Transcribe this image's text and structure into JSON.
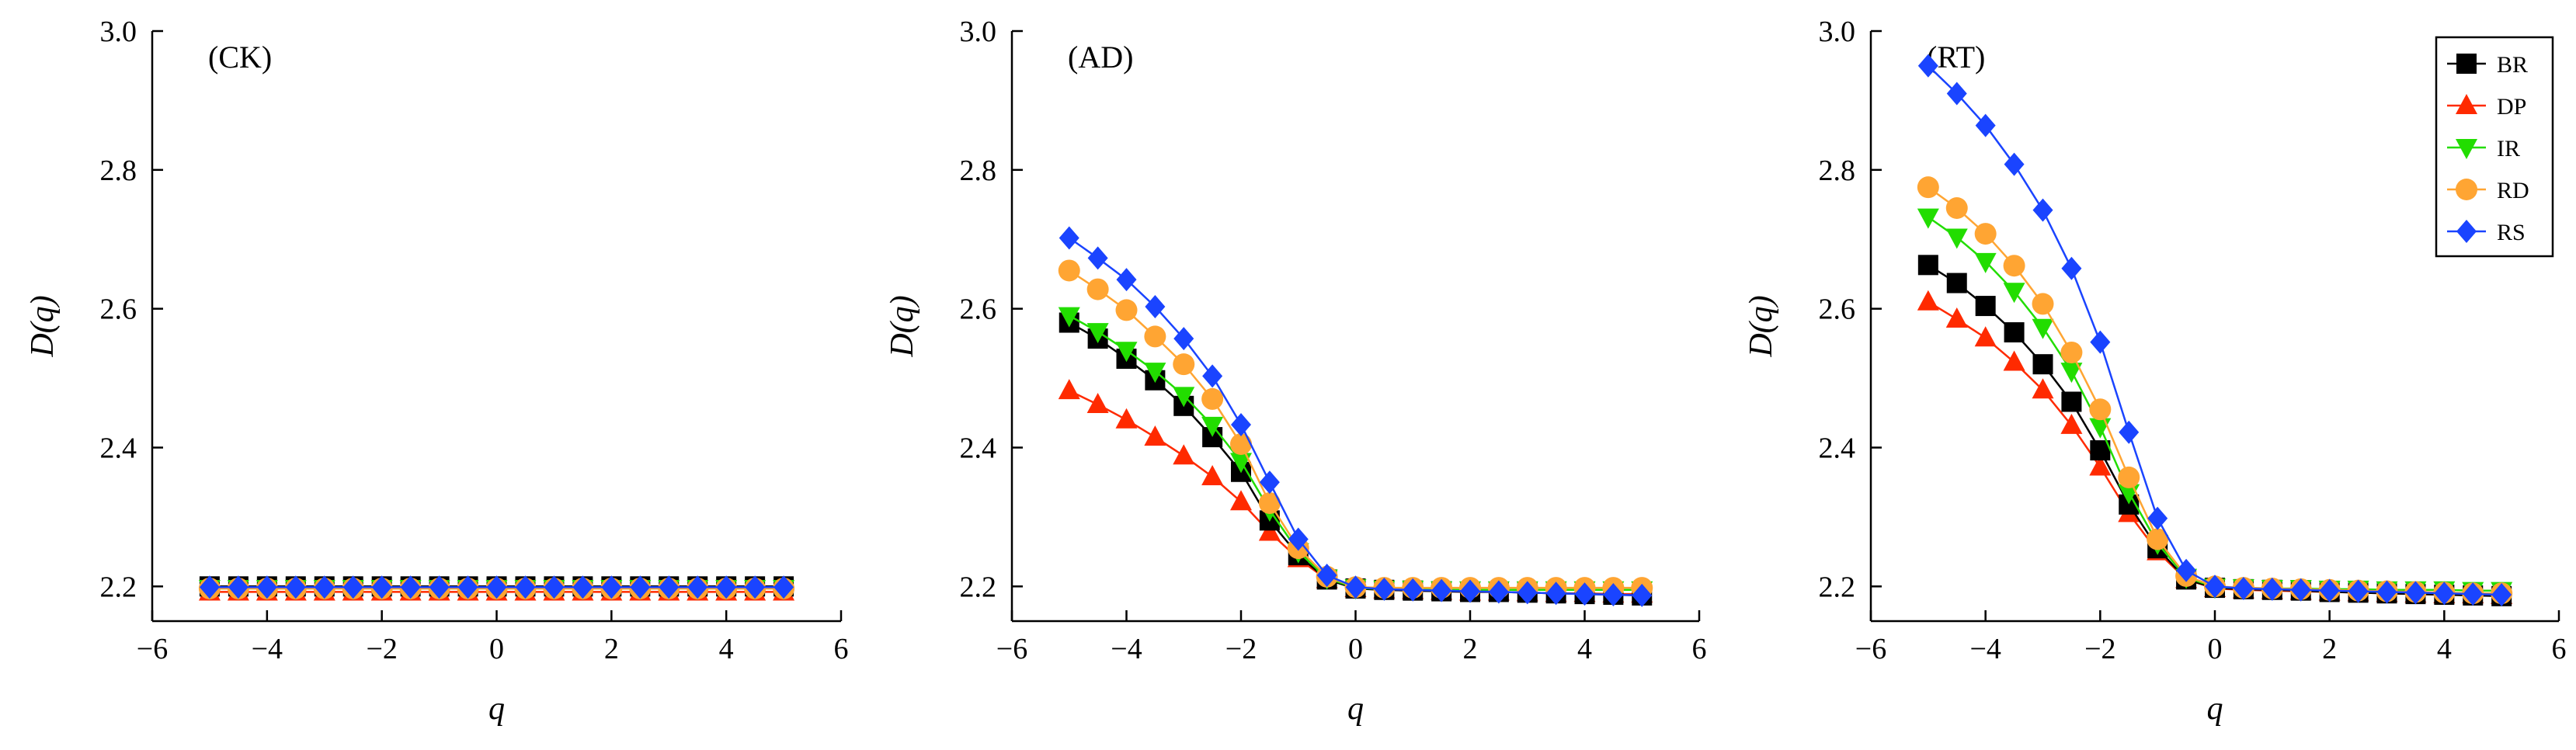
{
  "chart_data": [
    {
      "type": "line",
      "panel_label": "(CK)",
      "xlabel": "q",
      "ylabel": "D(q)",
      "xlim": [
        -6,
        6
      ],
      "ylim": [
        2.15,
        3.0
      ],
      "xticks": [
        -6,
        -4,
        -2,
        0,
        2,
        4,
        6
      ],
      "xtick_labels": [
        "−6",
        "−4",
        "−2",
        "0",
        "2",
        "4",
        "6"
      ],
      "yticks": [
        2.2,
        2.4,
        2.6,
        2.8,
        3.0
      ],
      "ytick_labels": [
        "2.2",
        "2.4",
        "2.6",
        "2.8",
        "3.0"
      ],
      "grid": false,
      "x": [
        -5,
        -4.5,
        -4,
        -3.5,
        -3,
        -2.5,
        -2,
        -1.5,
        -1,
        -0.5,
        0,
        0.5,
        1,
        1.5,
        2,
        2.5,
        3,
        3.5,
        4,
        4.5,
        5
      ],
      "series": [
        {
          "name": "BR",
          "values": [
            2.2,
            2.2,
            2.2,
            2.2,
            2.2,
            2.2,
            2.2,
            2.2,
            2.2,
            2.2,
            2.2,
            2.2,
            2.2,
            2.2,
            2.2,
            2.2,
            2.2,
            2.2,
            2.2,
            2.2,
            2.2
          ]
        },
        {
          "name": "DP",
          "values": [
            2.192,
            2.192,
            2.192,
            2.192,
            2.192,
            2.192,
            2.192,
            2.192,
            2.192,
            2.192,
            2.192,
            2.192,
            2.192,
            2.192,
            2.192,
            2.192,
            2.192,
            2.192,
            2.192,
            2.192,
            2.192
          ]
        },
        {
          "name": "IR",
          "values": [
            2.197,
            2.197,
            2.197,
            2.197,
            2.197,
            2.197,
            2.197,
            2.197,
            2.197,
            2.197,
            2.197,
            2.197,
            2.197,
            2.197,
            2.197,
            2.197,
            2.197,
            2.197,
            2.197,
            2.197,
            2.197
          ]
        },
        {
          "name": "RD",
          "values": [
            2.197,
            2.197,
            2.197,
            2.197,
            2.197,
            2.197,
            2.197,
            2.197,
            2.197,
            2.197,
            2.197,
            2.197,
            2.197,
            2.197,
            2.197,
            2.197,
            2.197,
            2.197,
            2.197,
            2.197,
            2.197
          ]
        },
        {
          "name": "RS",
          "values": [
            2.199,
            2.199,
            2.199,
            2.199,
            2.199,
            2.199,
            2.199,
            2.199,
            2.199,
            2.199,
            2.199,
            2.199,
            2.199,
            2.199,
            2.199,
            2.199,
            2.199,
            2.199,
            2.199,
            2.199,
            2.199
          ]
        }
      ]
    },
    {
      "type": "line",
      "panel_label": "(AD)",
      "xlabel": "q",
      "ylabel": "D(q)",
      "xlim": [
        -6,
        6
      ],
      "ylim": [
        2.15,
        3.0
      ],
      "xticks": [
        -6,
        -4,
        -2,
        0,
        2,
        4,
        6
      ],
      "xtick_labels": [
        "−6",
        "−4",
        "−2",
        "0",
        "2",
        "4",
        "6"
      ],
      "yticks": [
        2.2,
        2.4,
        2.6,
        2.8,
        3.0
      ],
      "ytick_labels": [
        "2.2",
        "2.4",
        "2.6",
        "2.8",
        "3.0"
      ],
      "grid": false,
      "x": [
        -5,
        -4.5,
        -4,
        -3.5,
        -3,
        -2.5,
        -2,
        -1.5,
        -1,
        -0.5,
        0,
        0.5,
        1,
        1.5,
        2,
        2.5,
        3,
        3.5,
        4,
        4.5,
        5
      ],
      "series": [
        {
          "name": "BR",
          "values": [
            2.58,
            2.557,
            2.528,
            2.497,
            2.46,
            2.415,
            2.365,
            2.295,
            2.245,
            2.21,
            2.197,
            2.195,
            2.194,
            2.193,
            2.192,
            2.192,
            2.191,
            2.19,
            2.189,
            2.188,
            2.187
          ]
        },
        {
          "name": "DP",
          "values": [
            2.482,
            2.462,
            2.44,
            2.415,
            2.388,
            2.358,
            2.322,
            2.278,
            2.24,
            2.21,
            2.197,
            2.195,
            2.194,
            2.193,
            2.192,
            2.192,
            2.191,
            2.19,
            2.19,
            2.189,
            2.189
          ]
        },
        {
          "name": "IR",
          "values": [
            2.59,
            2.567,
            2.54,
            2.51,
            2.475,
            2.432,
            2.38,
            2.31,
            2.25,
            2.212,
            2.198,
            2.196,
            2.196,
            2.195,
            2.195,
            2.195,
            2.195,
            2.195,
            2.195,
            2.195,
            2.195
          ]
        },
        {
          "name": "RD",
          "values": [
            2.655,
            2.628,
            2.598,
            2.56,
            2.52,
            2.47,
            2.405,
            2.32,
            2.255,
            2.214,
            2.199,
            2.198,
            2.198,
            2.198,
            2.198,
            2.198,
            2.198,
            2.198,
            2.198,
            2.198,
            2.198
          ]
        },
        {
          "name": "RS",
          "values": [
            2.702,
            2.673,
            2.642,
            2.603,
            2.557,
            2.503,
            2.433,
            2.35,
            2.268,
            2.216,
            2.199,
            2.196,
            2.195,
            2.194,
            2.193,
            2.192,
            2.191,
            2.19,
            2.189,
            2.188,
            2.187
          ]
        }
      ]
    },
    {
      "type": "line",
      "panel_label": "(RT)",
      "xlabel": "q",
      "ylabel": "D(q)",
      "xlim": [
        -6,
        6
      ],
      "ylim": [
        2.15,
        3.0
      ],
      "xticks": [
        -6,
        -4,
        -2,
        0,
        2,
        4,
        6
      ],
      "xtick_labels": [
        "−6",
        "−4",
        "−2",
        "0",
        "2",
        "4",
        "6"
      ],
      "yticks": [
        2.2,
        2.4,
        2.6,
        2.8,
        3.0
      ],
      "ytick_labels": [
        "2.2",
        "2.4",
        "2.6",
        "2.8",
        "3.0"
      ],
      "grid": false,
      "legend": {
        "position": "top-right",
        "entries": [
          "BR",
          "DP",
          "IR",
          "RD",
          "RS"
        ]
      },
      "x": [
        -5,
        -4.5,
        -4,
        -3.5,
        -3,
        -2.5,
        -2,
        -1.5,
        -1,
        -0.5,
        0,
        0.5,
        1,
        1.5,
        2,
        2.5,
        3,
        3.5,
        4,
        4.5,
        5
      ],
      "series": [
        {
          "name": "BR",
          "values": [
            2.663,
            2.637,
            2.604,
            2.566,
            2.52,
            2.466,
            2.396,
            2.318,
            2.255,
            2.21,
            2.198,
            2.196,
            2.195,
            2.194,
            2.192,
            2.191,
            2.19,
            2.189,
            2.188,
            2.187,
            2.186
          ]
        },
        {
          "name": "DP",
          "values": [
            2.61,
            2.585,
            2.558,
            2.523,
            2.483,
            2.432,
            2.372,
            2.305,
            2.25,
            2.21,
            2.197,
            2.195,
            2.194,
            2.193,
            2.192,
            2.191,
            2.19,
            2.189,
            2.188,
            2.188,
            2.187
          ]
        },
        {
          "name": "IR",
          "values": [
            2.732,
            2.703,
            2.668,
            2.625,
            2.573,
            2.51,
            2.43,
            2.335,
            2.262,
            2.213,
            2.199,
            2.198,
            2.197,
            2.197,
            2.196,
            2.196,
            2.195,
            2.195,
            2.195,
            2.194,
            2.194
          ]
        },
        {
          "name": "RD",
          "values": [
            2.775,
            2.745,
            2.708,
            2.662,
            2.607,
            2.537,
            2.455,
            2.357,
            2.268,
            2.215,
            2.2,
            2.198,
            2.197,
            2.196,
            2.195,
            2.194,
            2.193,
            2.192,
            2.191,
            2.19,
            2.19
          ]
        },
        {
          "name": "RS",
          "values": [
            2.95,
            2.91,
            2.864,
            2.808,
            2.742,
            2.658,
            2.552,
            2.422,
            2.298,
            2.223,
            2.2,
            2.197,
            2.196,
            2.195,
            2.194,
            2.193,
            2.192,
            2.191,
            2.19,
            2.189,
            2.188
          ]
        }
      ]
    }
  ],
  "series_styles": {
    "BR": {
      "color": "#000000",
      "marker": "square"
    },
    "DP": {
      "color": "#ff2a00",
      "marker": "triangle-up"
    },
    "IR": {
      "color": "#22dd00",
      "marker": "triangle-down"
    },
    "RD": {
      "color": "#ffa533",
      "marker": "circle"
    },
    "RS": {
      "color": "#1a44ff",
      "marker": "diamond"
    }
  },
  "series_order": [
    "DP",
    "BR",
    "IR",
    "RD",
    "RS"
  ]
}
